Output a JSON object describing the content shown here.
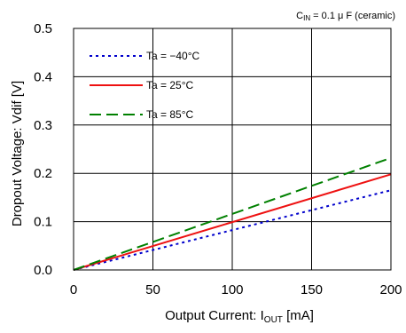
{
  "chart_data": {
    "type": "line",
    "title": "",
    "annotation": "C_IN = 0.1 μF (ceramic)",
    "annotation_parts": {
      "symbol": "C",
      "subscript": "IN",
      "value": " = 0.1 μ F (ceramic)"
    },
    "xlabel": "Output Current: I_OUT [mA]",
    "xlabel_parts": {
      "prefix": "Output Current: I",
      "subscript": "OUT",
      "suffix": " [mA]"
    },
    "ylabel": "Dropout Voltage: Vdif [V]",
    "xlim": [
      0,
      200
    ],
    "ylim": [
      0,
      0.5
    ],
    "xticks": [
      0,
      50,
      100,
      150,
      200
    ],
    "xtick_labels": [
      "0",
      "50",
      "100",
      "150",
      "200"
    ],
    "yticks": [
      0,
      0.1,
      0.2,
      0.3,
      0.4,
      0.5
    ],
    "ytick_labels": [
      "0.0",
      "0.1",
      "0.2",
      "0.3",
      "0.4",
      "0.5"
    ],
    "grid": true,
    "legend_position": "top-left",
    "series": [
      {
        "name": "Ta = −40°C",
        "color": "#0000cc",
        "style": "dotted",
        "x": [
          0,
          200
        ],
        "y": [
          0,
          0.165
        ]
      },
      {
        "name": "Ta = 25°C",
        "color": "#ee1111",
        "style": "solid",
        "x": [
          0,
          200
        ],
        "y": [
          0,
          0.198
        ]
      },
      {
        "name": "Ta = 85°C",
        "color": "#008000",
        "style": "dashed",
        "x": [
          0,
          200
        ],
        "y": [
          0,
          0.232
        ]
      }
    ]
  }
}
